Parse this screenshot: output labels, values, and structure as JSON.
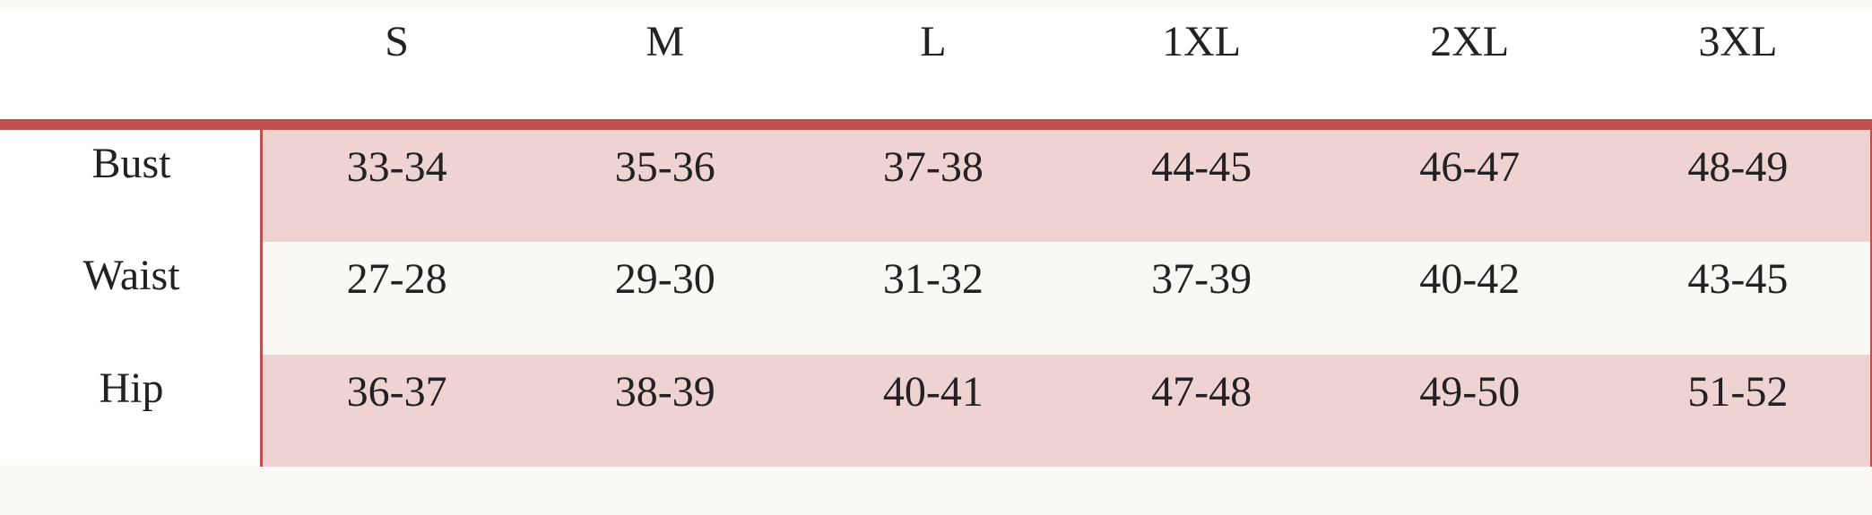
{
  "table": {
    "columns": [
      "S",
      "M",
      "L",
      "1XL",
      "2XL",
      "3XL"
    ],
    "rows": [
      {
        "label": "Bust",
        "values": [
          "33-34",
          "35-36",
          "37-38",
          "44-45",
          "46-47",
          "48-49"
        ]
      },
      {
        "label": "Waist",
        "values": [
          "27-28",
          "29-30",
          "31-32",
          "37-39",
          "40-42",
          "43-45"
        ]
      },
      {
        "label": "Hip",
        "values": [
          "36-37",
          "38-39",
          "40-41",
          "47-48",
          "49-50",
          "51-52"
        ]
      }
    ]
  }
}
